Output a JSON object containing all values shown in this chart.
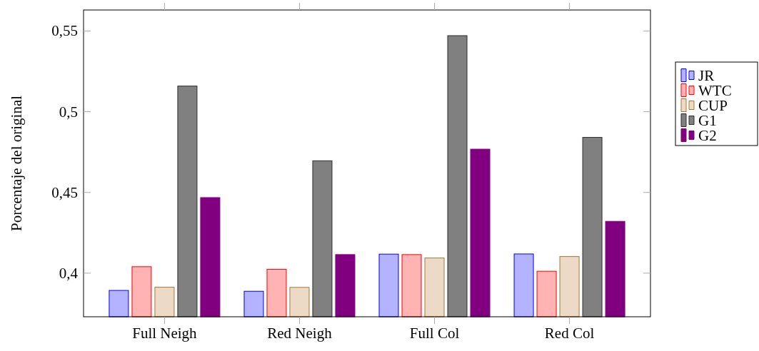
{
  "chart_data": {
    "type": "bar",
    "ylabel": "Porcentaje del original",
    "categories": [
      "Full Neigh",
      "Red Neigh",
      "Full Col",
      "Red Col"
    ],
    "series": [
      {
        "name": "JR",
        "color": "#b3b3ff",
        "values": [
          0.3893,
          0.3888,
          0.4118,
          0.4119
        ]
      },
      {
        "name": "WTC",
        "color": "#ffb3b3",
        "values": [
          0.404,
          0.4024,
          0.4115,
          0.4012
        ]
      },
      {
        "name": "CUP",
        "color": "#ecdac6",
        "values": [
          0.3913,
          0.3912,
          0.4094,
          0.4103
        ]
      },
      {
        "name": "G1",
        "color": "#808080",
        "values": [
          0.5159,
          0.4696,
          0.5471,
          0.4841
        ]
      },
      {
        "name": "G2",
        "color": "#800080",
        "values": [
          0.4468,
          0.4115,
          0.4768,
          0.4321
        ]
      }
    ],
    "ylim": [
      0.373,
      0.563
    ],
    "yticks": [
      {
        "value": 0.4,
        "label": "0,4"
      },
      {
        "value": 0.45,
        "label": "0,45"
      },
      {
        "value": 0.5,
        "label": "0,5"
      },
      {
        "value": 0.55,
        "label": "0,55"
      }
    ],
    "legend": "right"
  }
}
